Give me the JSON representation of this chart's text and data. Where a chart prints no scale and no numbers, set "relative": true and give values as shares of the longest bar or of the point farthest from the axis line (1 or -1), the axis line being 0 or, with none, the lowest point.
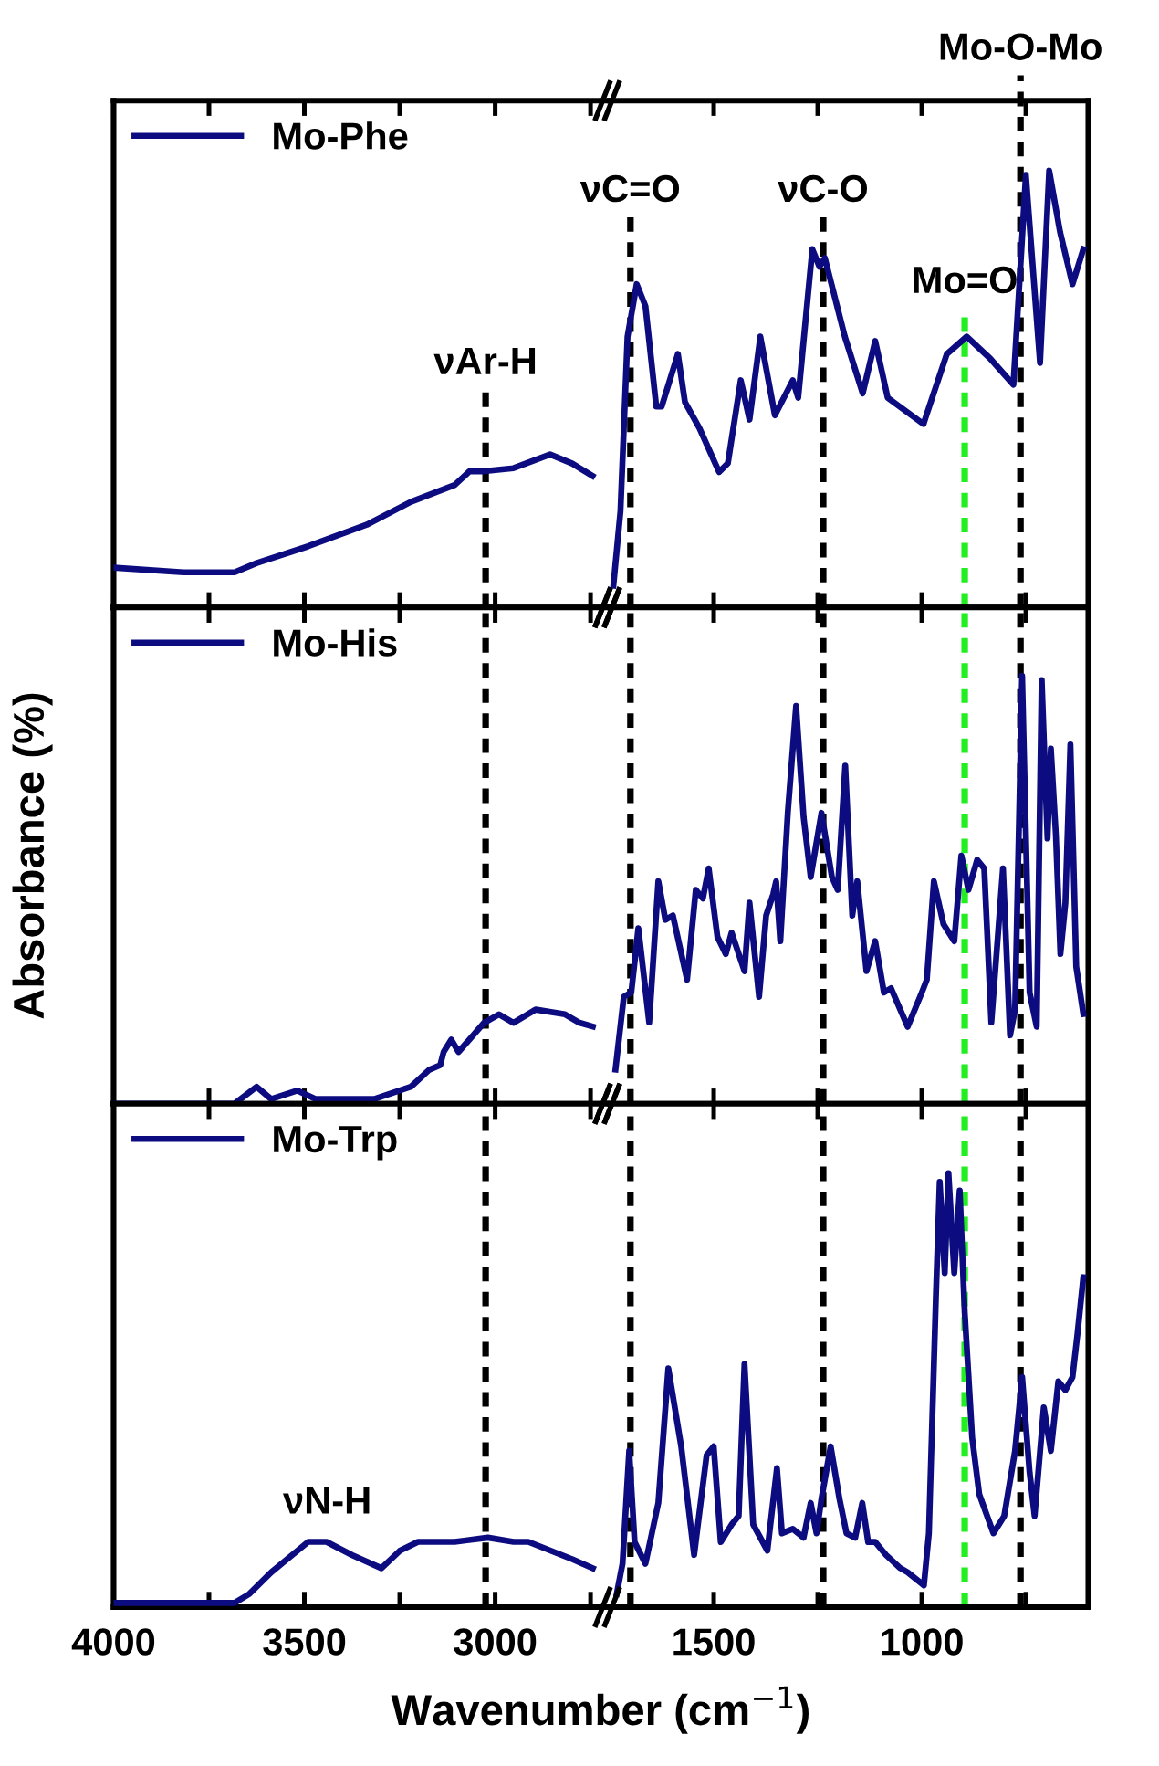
{
  "chart_data": [
    {
      "type": "line",
      "relative": true,
      "xlim": [
        4000,
        2700
      ],
      "xticks": [
        4000,
        {
          "value": 3750,
          "label": null
        },
        3500,
        {
          "value": 3250,
          "label": null
        },
        3000,
        {
          "value": 2750,
          "label": null
        }
      ],
      "tick_labels": false,
      "legend": "top left",
      "x": [
        4000,
        3817,
        3683,
        3625,
        3490,
        3337,
        3221,
        3106,
        3067,
        3029,
        2952,
        2856,
        2798,
        2745
      ],
      "series": [
        {
          "name": "Mo-Phe",
          "color": "#0c0c80",
          "values": [
            0.26,
            0.23,
            0.23,
            0.29,
            0.4,
            0.54,
            0.69,
            0.8,
            0.89,
            0.89,
            0.91,
            1.0,
            0.94,
            0.86
          ]
        }
      ],
      "ref_lines": [
        {
          "axis": "x",
          "value": 3025,
          "label": "νAr-H",
          "color": "#000000",
          "line_style": "dashed"
        }
      ]
    },
    {
      "type": "line",
      "relative": true,
      "xlim": [
        1750,
        600
      ],
      "xticks": [
        1500,
        {
          "value": 1250,
          "label": null
        },
        1000,
        {
          "value": 750,
          "label": null
        }
      ],
      "tick_labels": false,
      "x": [
        1741,
        1724,
        1707,
        1685,
        1664,
        1638,
        1625,
        1586,
        1569,
        1534,
        1487,
        1466,
        1435,
        1414,
        1388,
        1353,
        1310,
        1297,
        1263,
        1246,
        1233,
        1185,
        1142,
        1112,
        1082,
        996,
        940,
        892,
        836,
        780,
        750,
        716,
        694,
        668,
        638,
        612
      ],
      "series": [
        {
          "color": "#0c0c80",
          "values": [
            0.05,
            0.22,
            0.62,
            0.74,
            0.69,
            0.46,
            0.46,
            0.58,
            0.47,
            0.41,
            0.31,
            0.33,
            0.52,
            0.43,
            0.62,
            0.44,
            0.52,
            0.48,
            0.82,
            0.78,
            0.8,
            0.62,
            0.49,
            0.61,
            0.48,
            0.42,
            0.58,
            0.62,
            0.57,
            0.51,
            0.99,
            0.56,
            1.0,
            0.86,
            0.74,
            0.82
          ]
        }
      ],
      "ref_lines": [
        {
          "axis": "x",
          "value": 1700,
          "label": "νC=O",
          "color": "#000000",
          "line_style": "dashed"
        },
        {
          "axis": "x",
          "value": 1237,
          "label": "νC-O",
          "color": "#000000",
          "line_style": "dashed"
        },
        {
          "axis": "x",
          "value": 897,
          "label": "Mo=O",
          "color": "#22ee22",
          "line_style": "dashed"
        },
        {
          "axis": "x",
          "value": 763,
          "label": "Mo-O-Mo",
          "color": "#000000",
          "line_style": "dashed"
        }
      ]
    },
    {
      "type": "line",
      "relative": true,
      "xlim": [
        4000,
        2700
      ],
      "xticks": [
        4000,
        {
          "value": 3750,
          "label": null
        },
        3500,
        {
          "value": 3250,
          "label": null
        },
        3000,
        {
          "value": 2750,
          "label": null
        }
      ],
      "tick_labels": false,
      "legend": "top left",
      "ylabel": "Absorbance (%)",
      "x": [
        4000,
        3683,
        3625,
        3587,
        3519,
        3471,
        3317,
        3221,
        3173,
        3144,
        3135,
        3115,
        3096,
        3029,
        2990,
        2952,
        2894,
        2817,
        2779,
        2744
      ],
      "series": [
        {
          "name": "Mo-His",
          "color": "#0c0c80",
          "values": [
            0.0,
            0.0,
            0.18,
            0.05,
            0.14,
            0.05,
            0.05,
            0.18,
            0.36,
            0.41,
            0.55,
            0.68,
            0.55,
            0.86,
            0.95,
            0.86,
            1.0,
            0.95,
            0.86,
            0.82
          ]
        }
      ],
      "ref_lines": [
        {
          "axis": "x",
          "value": 3025,
          "color": "#000000",
          "line_style": "dashed"
        }
      ]
    },
    {
      "type": "line",
      "relative": true,
      "xlim": [
        1750,
        600
      ],
      "xticks": [
        1500,
        {
          "value": 1250,
          "label": null
        },
        1000,
        {
          "value": 750,
          "label": null
        }
      ],
      "tick_labels": false,
      "x": [
        1736,
        1716,
        1698,
        1681,
        1655,
        1633,
        1616,
        1598,
        1564,
        1543,
        1526,
        1512,
        1491,
        1471,
        1457,
        1426,
        1414,
        1391,
        1374,
        1357,
        1350,
        1340,
        1322,
        1302,
        1284,
        1267,
        1241,
        1216,
        1202,
        1184,
        1167,
        1155,
        1133,
        1112,
        1091,
        1074,
        1034,
        1000,
        988,
        971,
        948,
        922,
        905,
        888,
        867,
        850,
        833,
        805,
        788,
        776,
        759,
        741,
        724,
        712,
        698,
        690,
        678,
        667,
        655,
        643,
        629,
        612
      ],
      "series": [
        {
          "color": "#0c0c80",
          "values": [
            0.08,
            0.25,
            0.26,
            0.41,
            0.19,
            0.52,
            0.43,
            0.44,
            0.29,
            0.5,
            0.48,
            0.55,
            0.39,
            0.35,
            0.4,
            0.31,
            0.47,
            0.25,
            0.44,
            0.49,
            0.52,
            0.38,
            0.68,
            0.93,
            0.67,
            0.53,
            0.68,
            0.53,
            0.5,
            0.79,
            0.44,
            0.52,
            0.31,
            0.38,
            0.26,
            0.27,
            0.18,
            0.26,
            0.29,
            0.52,
            0.42,
            0.38,
            0.58,
            0.5,
            0.57,
            0.55,
            0.19,
            0.55,
            0.16,
            0.22,
            1.0,
            0.26,
            0.18,
            0.99,
            0.62,
            0.83,
            0.63,
            0.35,
            0.47,
            0.84,
            0.32,
            0.21
          ]
        }
      ],
      "ref_lines": [
        {
          "axis": "x",
          "value": 1700,
          "color": "#000000",
          "line_style": "dashed"
        },
        {
          "axis": "x",
          "value": 1237,
          "color": "#000000",
          "line_style": "dashed"
        },
        {
          "axis": "x",
          "value": 897,
          "color": "#22ee22",
          "line_style": "dashed"
        },
        {
          "axis": "x",
          "value": 763,
          "color": "#000000",
          "line_style": "dashed"
        }
      ]
    },
    {
      "type": "line",
      "relative": true,
      "xlim": [
        4000,
        2700
      ],
      "xticks": [
        4000,
        {
          "value": 3750,
          "label": null
        },
        3500,
        {
          "value": 3250,
          "label": null
        },
        3000,
        {
          "value": 2750,
          "label": null
        }
      ],
      "tick_labels": "x",
      "legend": "top left",
      "annotations": [
        {
          "text": "νN-H",
          "x": 3440,
          "y": 0.94
        }
      ],
      "x": [
        4000,
        3683,
        3644,
        3587,
        3490,
        3442,
        3375,
        3298,
        3250,
        3202,
        3106,
        3019,
        2952,
        2913,
        2798,
        2744
      ],
      "series": [
        {
          "name": "Mo-Trp",
          "color": "#0c0c80",
          "values": [
            0.06,
            0.06,
            0.19,
            0.5,
            0.94,
            0.94,
            0.75,
            0.56,
            0.81,
            0.94,
            0.94,
            1.0,
            0.94,
            0.94,
            0.69,
            0.56
          ]
        }
      ],
      "ref_lines": [
        {
          "axis": "x",
          "value": 3025,
          "color": "#000000",
          "line_style": "dashed"
        }
      ]
    },
    {
      "type": "line",
      "relative": true,
      "xlim": [
        1750,
        600
      ],
      "xticks": [
        1500,
        {
          "value": 1250,
          "label": null
        },
        1000,
        {
          "value": 750,
          "label": null
        }
      ],
      "tick_labels": "x",
      "xlabel": "Wavenumber (cm$^{−1}$)",
      "x": [
        1733,
        1719,
        1703,
        1690,
        1664,
        1633,
        1609,
        1578,
        1547,
        1517,
        1500,
        1483,
        1457,
        1440,
        1426,
        1405,
        1371,
        1348,
        1336,
        1310,
        1284,
        1267,
        1253,
        1241,
        1219,
        1198,
        1181,
        1160,
        1143,
        1129,
        1112,
        1086,
        1052,
        1034,
        995,
        983,
        966,
        957,
        945,
        936,
        922,
        909,
        897,
        879,
        862,
        828,
        802,
        776,
        759,
        741,
        729,
        707,
        690,
        672,
        655,
        638,
        626,
        612
      ],
      "series": [
        {
          "color": "#0c0c80",
          "values": [
            0.03,
            0.1,
            0.36,
            0.15,
            0.1,
            0.24,
            0.55,
            0.37,
            0.12,
            0.35,
            0.37,
            0.15,
            0.19,
            0.21,
            0.56,
            0.19,
            0.13,
            0.32,
            0.17,
            0.18,
            0.16,
            0.24,
            0.17,
            0.25,
            0.37,
            0.25,
            0.17,
            0.16,
            0.24,
            0.15,
            0.15,
            0.12,
            0.09,
            0.08,
            0.05,
            0.17,
            0.72,
            0.98,
            0.77,
            1.0,
            0.77,
            0.96,
            0.68,
            0.39,
            0.26,
            0.17,
            0.21,
            0.36,
            0.53,
            0.31,
            0.21,
            0.46,
            0.36,
            0.52,
            0.5,
            0.53,
            0.63,
            0.76
          ]
        }
      ],
      "ref_lines": [
        {
          "axis": "x",
          "value": 1700,
          "color": "#000000",
          "line_style": "dashed"
        },
        {
          "axis": "x",
          "value": 1237,
          "color": "#000000",
          "line_style": "dashed"
        },
        {
          "axis": "x",
          "value": 897,
          "color": "#22ee22",
          "line_style": "dashed"
        },
        {
          "axis": "x",
          "value": 763,
          "color": "#000000",
          "line_style": "dashed"
        }
      ]
    }
  ]
}
